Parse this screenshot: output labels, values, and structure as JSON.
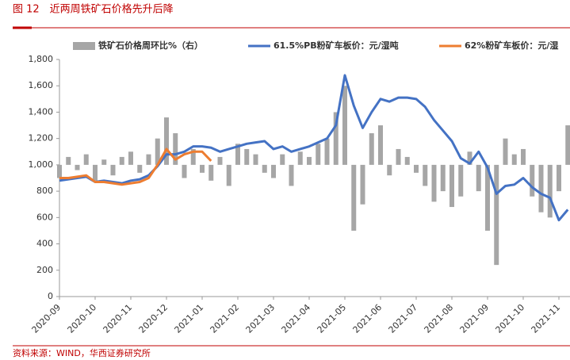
{
  "chart_data": {
    "type": "bar-line",
    "title": "图 12　近两周铁矿石价格先升后降",
    "source": "资料来源：WIND，华西证券研究所",
    "categories": [
      "2020-09",
      null,
      null,
      null,
      "2020-10",
      null,
      null,
      null,
      "2020-11",
      null,
      null,
      null,
      "2020-12",
      null,
      null,
      null,
      "2021-01",
      null,
      null,
      null,
      "2021-02",
      null,
      null,
      null,
      "2021-03",
      null,
      null,
      null,
      "2021-04",
      null,
      null,
      null,
      "2021-05",
      null,
      null,
      null,
      "2021-06",
      null,
      null,
      null,
      "2021-07",
      null,
      null,
      null,
      "2021-08",
      null,
      null,
      null,
      "2021-09",
      null,
      null,
      null,
      "2021-10",
      null,
      null,
      null,
      "2021-11",
      null
    ],
    "ylim": [
      0,
      1800
    ],
    "yticks": [
      0,
      200,
      400,
      600,
      800,
      {
        "value": 1000,
        "label": "1,000"
      },
      {
        "value": 1200,
        "label": "1,200"
      },
      {
        "value": 1400,
        "label": "1,400"
      },
      {
        "value": 1600,
        "label": "1,600"
      },
      {
        "value": 1800,
        "label": "1,800"
      }
    ],
    "y2lim": [
      -50,
      40
    ],
    "series": [
      {
        "name": "铁矿石价格周环比%（右）",
        "kind": "bar",
        "axis": "y2",
        "color": "#a6a6a6",
        "values": [
          -5,
          3,
          -2,
          4,
          -6,
          2,
          -4,
          3,
          5,
          -3,
          4,
          10,
          18,
          12,
          -5,
          6,
          -3,
          -6,
          3,
          -8,
          8,
          6,
          4,
          -3,
          -5,
          4,
          -8,
          5,
          3,
          8,
          10,
          20,
          30,
          -25,
          -15,
          12,
          15,
          -4,
          6,
          3,
          -3,
          -8,
          -14,
          -10,
          -16,
          -12,
          5,
          -10,
          -25,
          -38,
          10,
          4,
          6,
          -12,
          -18,
          -20,
          -10,
          15
        ]
      },
      {
        "name": "61.5%PB粉矿车板价：元/湿吨",
        "kind": "line",
        "color": "#4472c4",
        "values": [
          880,
          890,
          900,
          910,
          870,
          880,
          870,
          860,
          880,
          890,
          920,
          990,
          1080,
          1080,
          1100,
          1140,
          1140,
          1130,
          1100,
          1120,
          1140,
          1160,
          1170,
          1180,
          1120,
          1140,
          1100,
          1120,
          1140,
          1170,
          1200,
          1300,
          1680,
          1450,
          1280,
          1400,
          1500,
          1480,
          1510,
          1510,
          1500,
          1440,
          1340,
          1260,
          1180,
          1050,
          1010,
          1100,
          980,
          780,
          840,
          850,
          900,
          830,
          780,
          750,
          580,
          660
        ]
      },
      {
        "name": "62%粉矿车板价：元/湿",
        "kind": "line",
        "color": "#ed7d31",
        "values": [
          900,
          900,
          910,
          920,
          870,
          870,
          860,
          850,
          860,
          870,
          900,
          1000,
          1120,
          1040,
          1080,
          1100,
          1100,
          1030,
          null,
          null,
          null,
          null,
          null,
          null,
          null,
          null,
          null,
          null,
          null,
          null,
          null,
          null,
          null,
          null,
          null,
          null,
          null,
          null,
          null,
          null,
          null,
          null,
          null,
          null,
          null,
          null,
          null,
          null,
          null,
          null,
          null,
          null,
          null,
          null,
          null,
          null,
          null,
          null
        ]
      }
    ]
  }
}
